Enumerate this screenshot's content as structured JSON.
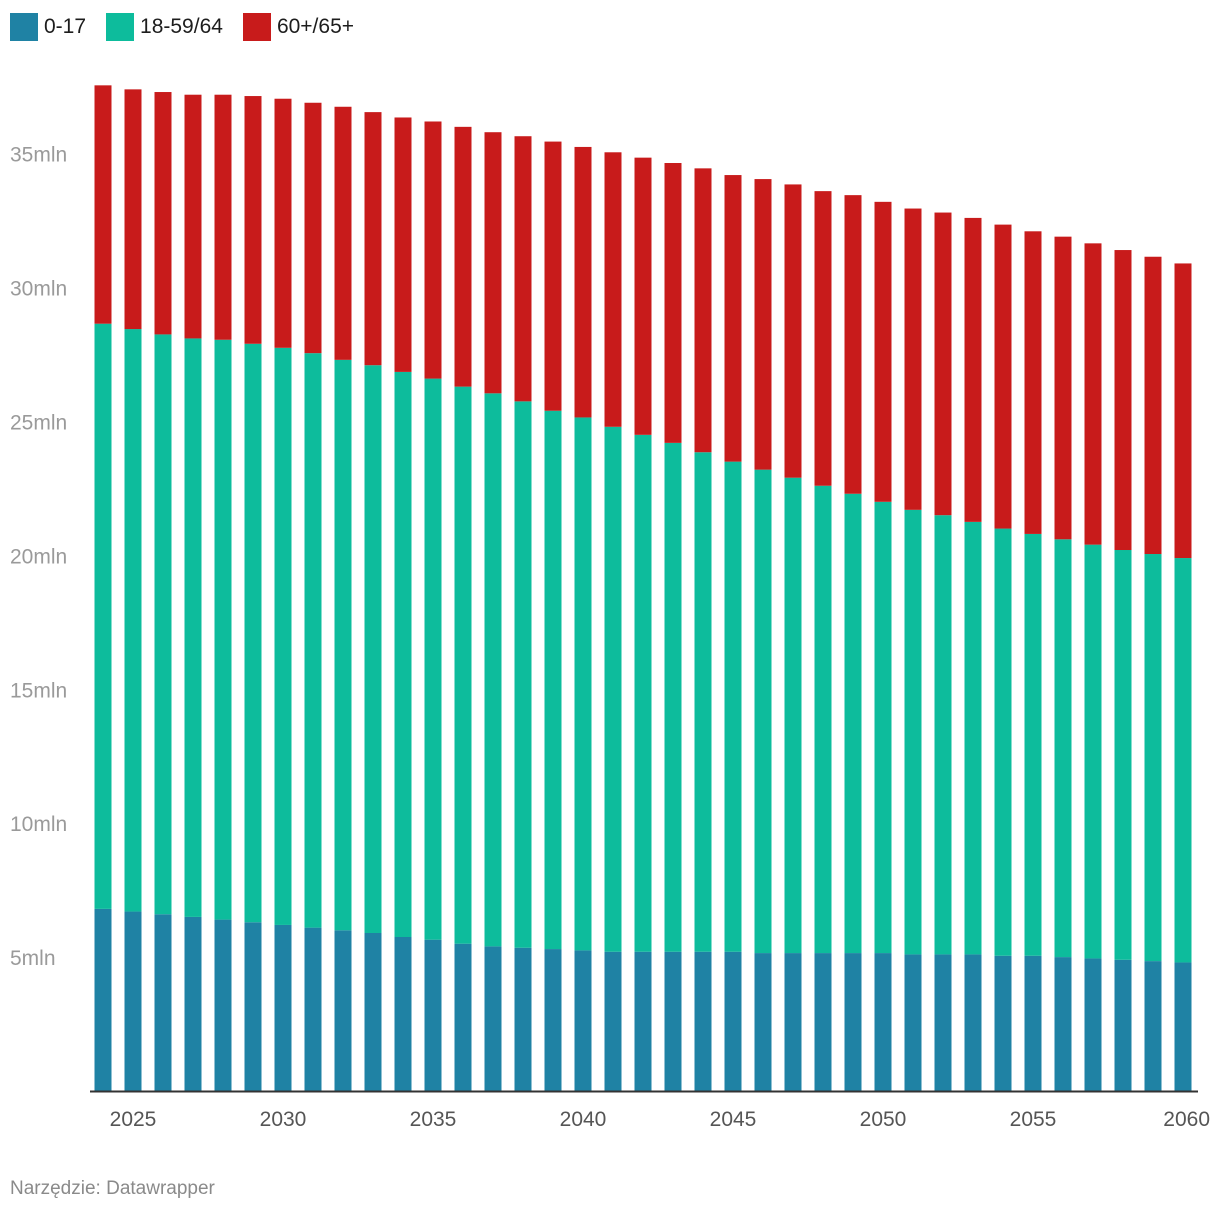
{
  "chart_data": {
    "type": "bar",
    "stacked": true,
    "title": "",
    "xlabel": "",
    "ylabel": "",
    "ylim": [
      0,
      37.6
    ],
    "legend_position": "top-left",
    "grid": false,
    "categories": [
      2024,
      2025,
      2026,
      2027,
      2028,
      2029,
      2030,
      2031,
      2032,
      2033,
      2034,
      2035,
      2036,
      2037,
      2038,
      2039,
      2040,
      2041,
      2042,
      2043,
      2044,
      2045,
      2046,
      2047,
      2048,
      2049,
      2050,
      2051,
      2052,
      2053,
      2054,
      2055,
      2056,
      2057,
      2058,
      2059,
      2060
    ],
    "x_tick_labels": [
      {
        "value": 2025,
        "label": "2025"
      },
      {
        "value": 2030,
        "label": "2030"
      },
      {
        "value": 2035,
        "label": "2035"
      },
      {
        "value": 2040,
        "label": "2040"
      },
      {
        "value": 2045,
        "label": "2045"
      },
      {
        "value": 2050,
        "label": "2050"
      },
      {
        "value": 2055,
        "label": "2055"
      },
      {
        "value": 2060,
        "label": "2060"
      }
    ],
    "y_tick_labels": [
      {
        "value": 5,
        "label": "5mln"
      },
      {
        "value": 10,
        "label": "10mln"
      },
      {
        "value": 15,
        "label": "15mln"
      },
      {
        "value": 20,
        "label": "20mln"
      },
      {
        "value": 25,
        "label": "25mln"
      },
      {
        "value": 30,
        "label": "30mln"
      },
      {
        "value": 35,
        "label": "35mln"
      }
    ],
    "series": [
      {
        "name": "0-17",
        "color": "#1f82a4",
        "values": [
          6.8,
          6.7,
          6.6,
          6.5,
          6.4,
          6.3,
          6.2,
          6.1,
          6.0,
          5.9,
          5.75,
          5.65,
          5.5,
          5.4,
          5.35,
          5.3,
          5.25,
          5.2,
          5.2,
          5.2,
          5.2,
          5.2,
          5.15,
          5.15,
          5.15,
          5.15,
          5.15,
          5.1,
          5.1,
          5.1,
          5.05,
          5.05,
          5.0,
          4.95,
          4.9,
          4.85,
          4.8
        ]
      },
      {
        "name": "18-59/64",
        "color": "#0dbc9c",
        "values": [
          21.85,
          21.75,
          21.65,
          21.6,
          21.65,
          21.6,
          21.55,
          21.45,
          21.3,
          21.2,
          21.1,
          20.95,
          20.8,
          20.65,
          20.4,
          20.1,
          19.9,
          19.6,
          19.3,
          19.0,
          18.65,
          18.3,
          18.05,
          17.75,
          17.45,
          17.15,
          16.85,
          16.6,
          16.4,
          16.15,
          15.95,
          15.75,
          15.6,
          15.45,
          15.3,
          15.2,
          15.1
        ]
      },
      {
        "name": "60+/65+",
        "color": "#c81b1b",
        "values": [
          8.9,
          8.95,
          9.05,
          9.1,
          9.15,
          9.25,
          9.3,
          9.35,
          9.45,
          9.45,
          9.5,
          9.6,
          9.7,
          9.75,
          9.9,
          10.05,
          10.1,
          10.25,
          10.35,
          10.45,
          10.6,
          10.7,
          10.85,
          10.95,
          11.0,
          11.15,
          11.2,
          11.25,
          11.3,
          11.35,
          11.35,
          11.3,
          11.3,
          11.25,
          11.2,
          11.1,
          11.0
        ]
      }
    ]
  },
  "footer": {
    "source": "Narzędzie: Datawrapper"
  }
}
